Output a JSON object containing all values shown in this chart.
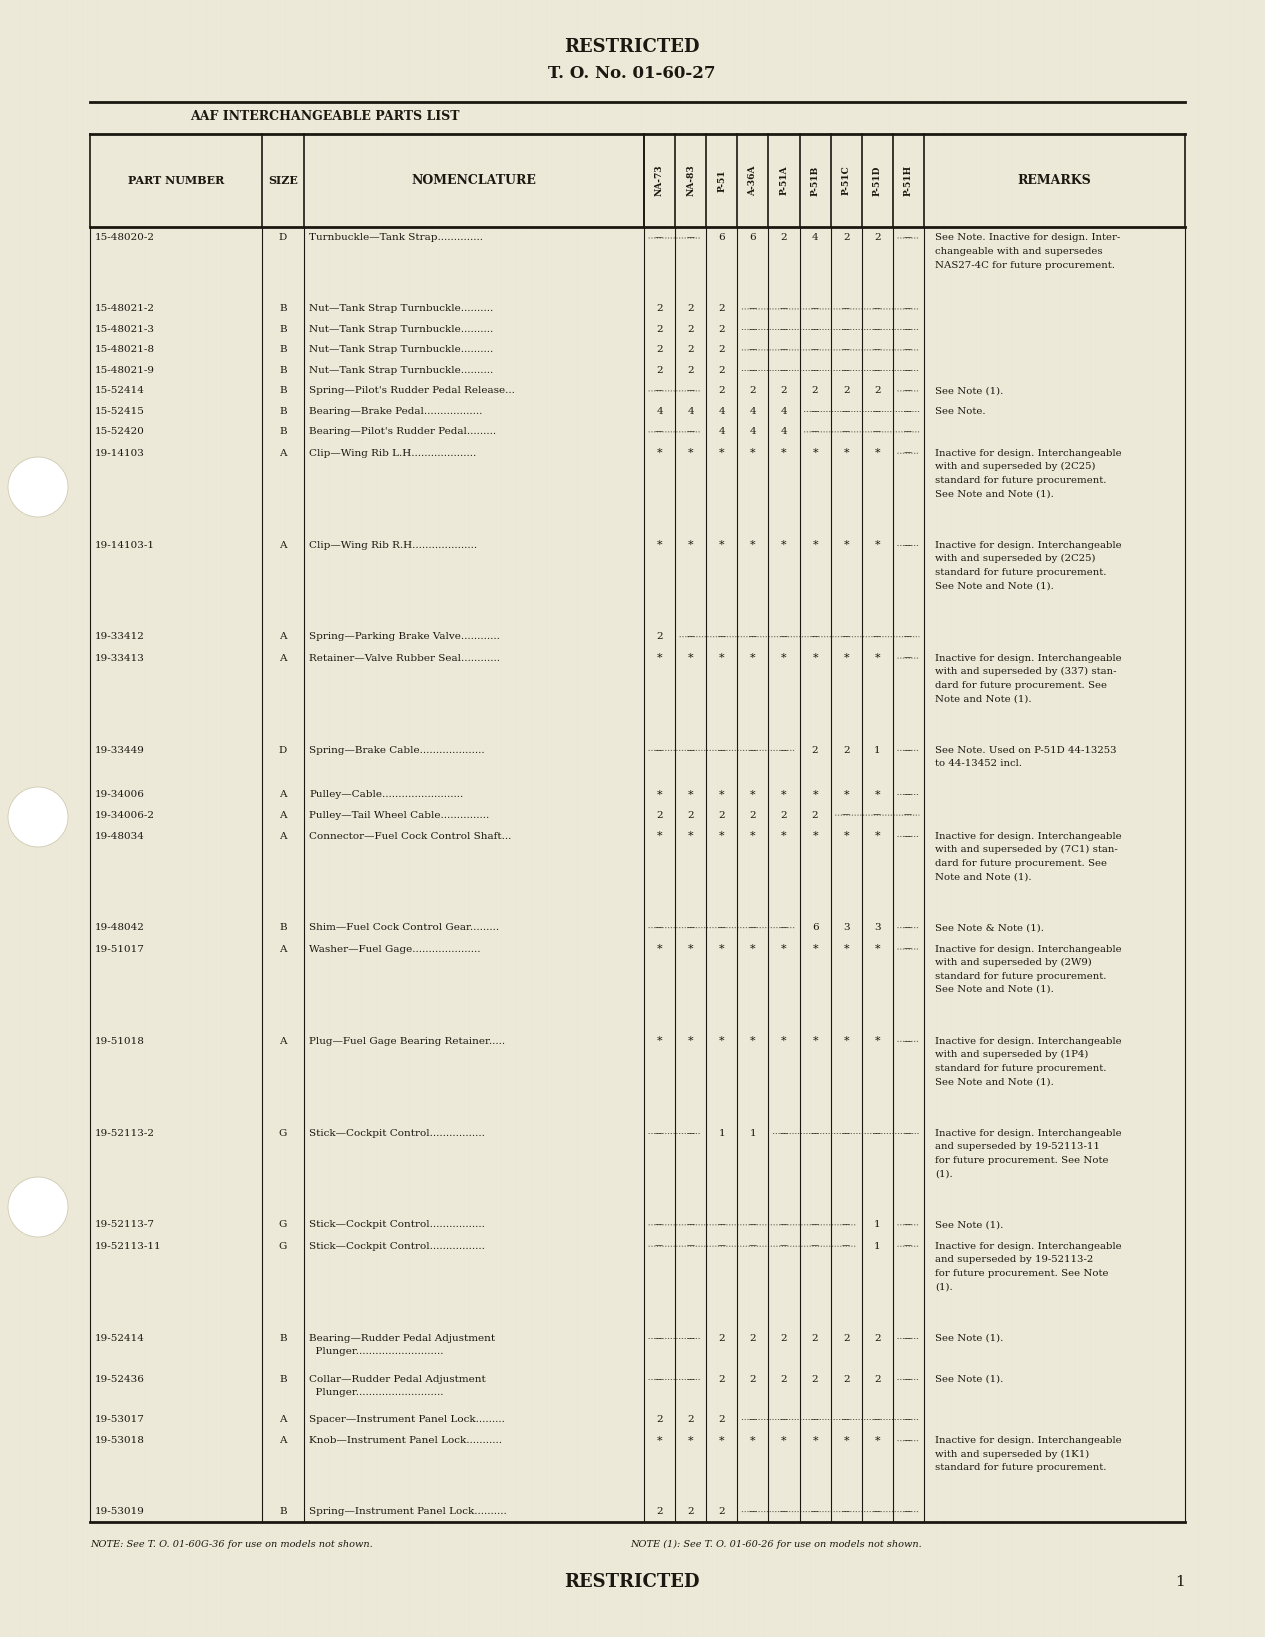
{
  "bg_color": "#ede9d8",
  "text_color": "#1a1810",
  "title_top": "RESTRICTED",
  "title_top2": "T. O. No. 01-60-27",
  "title_bottom": "RESTRICTED",
  "page_number": "1",
  "header_label": "AAF INTERCHANGEABLE PARTS LIST",
  "note_bottom1": "NOTE: See T. O. 01-60G-36 for use on models not shown.",
  "note_bottom2": "NOTE (1): See T. O. 01-60-26 for use on models not shown.",
  "rows": [
    {
      "part": "15-48020-2",
      "size": "D",
      "nom": "Turnbuckle—Tank Strap..............",
      "vals": [
        " ",
        " ",
        "6",
        "6",
        "2",
        "4",
        "2",
        "2",
        " "
      ],
      "val_fmt": [
        "dd",
        "dd",
        "n",
        "n",
        "n",
        "n",
        "n",
        "n",
        "d"
      ],
      "remarks": "See Note. Inactive for design. Inter-\nchangeable with and supersedes\nNAS27-4C for future procurement.",
      "rh_mult": 3.5
    },
    {
      "part": "15-48021-2",
      "size": "B",
      "nom": "Nut—Tank Strap Turnbuckle..........",
      "vals": [
        "2",
        "2",
        "2",
        " ",
        " ",
        " ",
        " ",
        " ",
        " "
      ],
      "val_fmt": [
        "n",
        "n",
        "n",
        "dd",
        "dd",
        "dd",
        "dd",
        "dd",
        "dd"
      ],
      "remarks": "",
      "rh_mult": 1.0
    },
    {
      "part": "15-48021-3",
      "size": "B",
      "nom": "Nut—Tank Strap Turnbuckle..........",
      "vals": [
        "2",
        "2",
        "2",
        " ",
        " ",
        " ",
        " ",
        " ",
        " "
      ],
      "val_fmt": [
        "n",
        "n",
        "n",
        "dd",
        "dd",
        "dd",
        "dd",
        "dd",
        "dd"
      ],
      "remarks": "",
      "rh_mult": 1.0
    },
    {
      "part": "15-48021-8",
      "size": "B",
      "nom": "Nut—Tank Strap Turnbuckle..........",
      "vals": [
        "2",
        "2",
        "2",
        " ",
        " ",
        " ",
        " ",
        " ",
        " "
      ],
      "val_fmt": [
        "n",
        "n",
        "n",
        "dd",
        "dd",
        "dd",
        "dd",
        "dd",
        "dd"
      ],
      "remarks": "",
      "rh_mult": 1.0
    },
    {
      "part": "15-48021-9",
      "size": "B",
      "nom": "Nut—Tank Strap Turnbuckle..........",
      "vals": [
        "2",
        "2",
        "2",
        " ",
        " ",
        " ",
        " ",
        " ",
        " "
      ],
      "val_fmt": [
        "n",
        "n",
        "n",
        "dd",
        "dd",
        "dd",
        "dd",
        "dd",
        "dd"
      ],
      "remarks": "",
      "rh_mult": 1.0
    },
    {
      "part": "15-52414",
      "size": "B",
      "nom": "Spring—Pilot's Rudder Pedal Release...",
      "vals": [
        " ",
        " ",
        "2",
        "2",
        "2",
        "2",
        "2",
        "2",
        " "
      ],
      "val_fmt": [
        "dd",
        "dd",
        "n",
        "n",
        "n",
        "n",
        "n",
        "n",
        "d"
      ],
      "remarks": "See Note (1).",
      "rh_mult": 1.0
    },
    {
      "part": "15-52415",
      "size": "B",
      "nom": "Bearing—Brake Pedal..................",
      "vals": [
        "4",
        "4",
        "4",
        "4",
        "4",
        " ",
        " ",
        " ",
        " "
      ],
      "val_fmt": [
        "n",
        "n",
        "n",
        "n",
        "n",
        "dd",
        "dd",
        "dd",
        "dd"
      ],
      "remarks": "See Note.",
      "rh_mult": 1.0
    },
    {
      "part": "15-52420",
      "size": "B",
      "nom": "Bearing—Pilot's Rudder Pedal.........",
      "vals": [
        " ",
        " ",
        "4",
        "4",
        "4",
        " ",
        " ",
        " ",
        " "
      ],
      "val_fmt": [
        "dd",
        "dd",
        "n",
        "n",
        "n",
        "dd",
        "dd",
        "dd",
        "dd"
      ],
      "remarks": "",
      "rh_mult": 1.0
    },
    {
      "part": "19-14103",
      "size": "A",
      "nom": "Clip—Wing Rib L.H....................",
      "vals": [
        "*",
        "*",
        "*",
        "*",
        "*",
        "*",
        "*",
        "*",
        " "
      ],
      "val_fmt": [
        "s",
        "s",
        "s",
        "s",
        "s",
        "s",
        "s",
        "s",
        "d"
      ],
      "remarks": "Inactive for design. Interchangeable\nwith and superseded by (2C25)\nstandard for future procurement.\nSee Note and Note (1).",
      "rh_mult": 4.5
    },
    {
      "part": "19-14103-1",
      "size": "A",
      "nom": "Clip—Wing Rib R.H....................",
      "vals": [
        "*",
        "*",
        "*",
        "*",
        "*",
        "*",
        "*",
        "*",
        " "
      ],
      "val_fmt": [
        "s",
        "s",
        "s",
        "s",
        "s",
        "s",
        "s",
        "s",
        "d"
      ],
      "remarks": "Inactive for design. Interchangeable\nwith and superseded by (2C25)\nstandard for future procurement.\nSee Note and Note (1).",
      "rh_mult": 4.5
    },
    {
      "part": "19-33412",
      "size": "A",
      "nom": "Spring—Parking Brake Valve............",
      "vals": [
        "2",
        " ",
        " ",
        " ",
        " ",
        " ",
        " ",
        " ",
        " "
      ],
      "val_fmt": [
        "n",
        "dd",
        "dd",
        "dd",
        "dd",
        "dd",
        "dd",
        "dd",
        "dd"
      ],
      "remarks": "",
      "rh_mult": 1.0
    },
    {
      "part": "19-33413",
      "size": "A",
      "nom": "Retainer—Valve Rubber Seal............",
      "vals": [
        "*",
        "*",
        "*",
        "*",
        "*",
        "*",
        "*",
        "*",
        " "
      ],
      "val_fmt": [
        "s",
        "s",
        "s",
        "s",
        "s",
        "s",
        "s",
        "s",
        "d"
      ],
      "remarks": "Inactive for design. Interchangeable\nwith and superseded by (337) stan-\ndard for future procurement. See\nNote and Note (1).",
      "rh_mult": 4.5
    },
    {
      "part": "19-33449",
      "size": "D",
      "nom": "Spring—Brake Cable....................",
      "vals": [
        " ",
        " ",
        " ",
        " ",
        " ",
        "2",
        "2",
        "1",
        " "
      ],
      "val_fmt": [
        "dd",
        "dd",
        "dd",
        "dd",
        "dd",
        "n",
        "n",
        "n",
        "d"
      ],
      "remarks": "See Note. Used on P-51D 44-13253\nto 44-13452 incl.",
      "rh_mult": 2.2
    },
    {
      "part": "19-34006",
      "size": "A",
      "nom": "Pulley—Cable.........................",
      "vals": [
        "*",
        "*",
        "*",
        "*",
        "*",
        "*",
        "*",
        "*",
        " "
      ],
      "val_fmt": [
        "s",
        "s",
        "s",
        "s",
        "s",
        "s",
        "s",
        "s",
        "d"
      ],
      "remarks": "",
      "rh_mult": 1.0
    },
    {
      "part": "19-34006-2",
      "size": "A",
      "nom": "Pulley—Tail Wheel Cable...............",
      "vals": [
        "2",
        "2",
        "2",
        "2",
        "2",
        "2",
        " ",
        " ",
        " "
      ],
      "val_fmt": [
        "n",
        "n",
        "n",
        "n",
        "n",
        "n",
        "dd",
        "dd",
        "dd"
      ],
      "remarks": "",
      "rh_mult": 1.0
    },
    {
      "part": "19-48034",
      "size": "A",
      "nom": "Connector—Fuel Cock Control Shaft...",
      "vals": [
        "*",
        "*",
        "*",
        "*",
        "*",
        "*",
        "*",
        "*",
        " "
      ],
      "val_fmt": [
        "s",
        "s",
        "s",
        "s",
        "s",
        "s",
        "s",
        "s",
        "d"
      ],
      "remarks": "Inactive for design. Interchangeable\nwith and superseded by (7C1) stan-\ndard for future procurement. See\nNote and Note (1).",
      "rh_mult": 4.5
    },
    {
      "part": "19-48042",
      "size": "B",
      "nom": "Shim—Fuel Cock Control Gear.........",
      "vals": [
        " ",
        " ",
        " ",
        " ",
        " ",
        "6",
        "3",
        "3",
        " "
      ],
      "val_fmt": [
        "dd",
        "dd",
        "dd",
        "dd",
        "dd",
        "n",
        "n",
        "n",
        "d"
      ],
      "remarks": "See Note & Note (1).",
      "rh_mult": 1.0
    },
    {
      "part": "19-51017",
      "size": "A",
      "nom": "Washer—Fuel Gage.....................",
      "vals": [
        "*",
        "*",
        "*",
        "*",
        "*",
        "*",
        "*",
        "*",
        " "
      ],
      "val_fmt": [
        "s",
        "s",
        "s",
        "s",
        "s",
        "s",
        "s",
        "s",
        "d"
      ],
      "remarks": "Inactive for design. Interchangeable\nwith and superseded by (2W9)\nstandard for future procurement.\nSee Note and Note (1).",
      "rh_mult": 4.5
    },
    {
      "part": "19-51018",
      "size": "A",
      "nom": "Plug—Fuel Gage Bearing Retainer.....",
      "vals": [
        "*",
        "*",
        "*",
        "*",
        "*",
        "*",
        "*",
        "*",
        " "
      ],
      "val_fmt": [
        "s",
        "s",
        "s",
        "s",
        "s",
        "s",
        "s",
        "s",
        "d"
      ],
      "remarks": "Inactive for design. Interchangeable\nwith and superseded by (1P4)\nstandard for future procurement.\nSee Note and Note (1).",
      "rh_mult": 4.5
    },
    {
      "part": "19-52113-2",
      "size": "G",
      "nom": "Stick—Cockpit Control.................",
      "vals": [
        " ",
        " ",
        "1",
        "1",
        " ",
        " ",
        " ",
        " ",
        " "
      ],
      "val_fmt": [
        "dd",
        "dd",
        "n",
        "n",
        "dd",
        "dd",
        "dd",
        "dd",
        "dd"
      ],
      "remarks": "Inactive for design. Interchangeable\nand superseded by 19-52113-11\nfor future procurement. See Note\n(1).",
      "rh_mult": 4.5
    },
    {
      "part": "19-52113-7",
      "size": "G",
      "nom": "Stick—Cockpit Control.................",
      "vals": [
        " ",
        " ",
        " ",
        " ",
        " ",
        " ",
        " ",
        "1",
        " "
      ],
      "val_fmt": [
        "dd",
        "dd",
        "dd",
        "dd",
        "dd",
        "dd",
        "dd",
        "n",
        "d"
      ],
      "remarks": "See Note (1).",
      "rh_mult": 1.0
    },
    {
      "part": "19-52113-11",
      "size": "G",
      "nom": "Stick—Cockpit Control.................",
      "vals": [
        " ",
        " ",
        " ",
        " ",
        " ",
        " ",
        " ",
        "1",
        " "
      ],
      "val_fmt": [
        "dd",
        "dd",
        "dd",
        "dd",
        "dd",
        "dd",
        "dd",
        "n",
        "d"
      ],
      "remarks": "Inactive for design. Interchangeable\nand superseded by 19-52113-2\nfor future procurement. See Note\n(1).",
      "rh_mult": 4.5
    },
    {
      "part": "19-52414",
      "size": "B",
      "nom": "Bearing—Rudder Pedal Adjustment\n  Plunger...........................",
      "vals": [
        " ",
        " ",
        "2",
        "2",
        "2",
        "2",
        "2",
        "2",
        " "
      ],
      "val_fmt": [
        "dd",
        "dd",
        "n",
        "n",
        "n",
        "n",
        "n",
        "n",
        "d"
      ],
      "remarks": "See Note (1).",
      "rh_mult": 2.0
    },
    {
      "part": "19-52436",
      "size": "B",
      "nom": "Collar—Rudder Pedal Adjustment\n  Plunger...........................",
      "vals": [
        " ",
        " ",
        "2",
        "2",
        "2",
        "2",
        "2",
        "2",
        " "
      ],
      "val_fmt": [
        "dd",
        "dd",
        "n",
        "n",
        "n",
        "n",
        "n",
        "n",
        "d"
      ],
      "remarks": "See Note (1).",
      "rh_mult": 2.0
    },
    {
      "part": "19-53017",
      "size": "A",
      "nom": "Spacer—Instrument Panel Lock.........",
      "vals": [
        "2",
        "2",
        "2",
        " ",
        " ",
        " ",
        " ",
        " ",
        " "
      ],
      "val_fmt": [
        "n",
        "n",
        "n",
        "dd",
        "dd",
        "dd",
        "dd",
        "dd",
        "dd"
      ],
      "remarks": "",
      "rh_mult": 1.0
    },
    {
      "part": "19-53018",
      "size": "A",
      "nom": "Knob—Instrument Panel Lock...........",
      "vals": [
        "*",
        "*",
        "*",
        "*",
        "*",
        "*",
        "*",
        "*",
        " "
      ],
      "val_fmt": [
        "s",
        "s",
        "s",
        "s",
        "s",
        "s",
        "s",
        "s",
        "d"
      ],
      "remarks": "Inactive for design. Interchangeable\nwith and superseded by (1K1)\nstandard for future procurement.",
      "rh_mult": 3.5
    },
    {
      "part": "19-53019",
      "size": "B",
      "nom": "Spring—Instrument Panel Lock..........",
      "vals": [
        "2",
        "2",
        "2",
        " ",
        " ",
        " ",
        " ",
        " ",
        " "
      ],
      "val_fmt": [
        "n",
        "n",
        "n",
        "dd",
        "dd",
        "dd",
        "dd",
        "dd",
        "dd"
      ],
      "remarks": "",
      "rh_mult": 1.0
    }
  ]
}
